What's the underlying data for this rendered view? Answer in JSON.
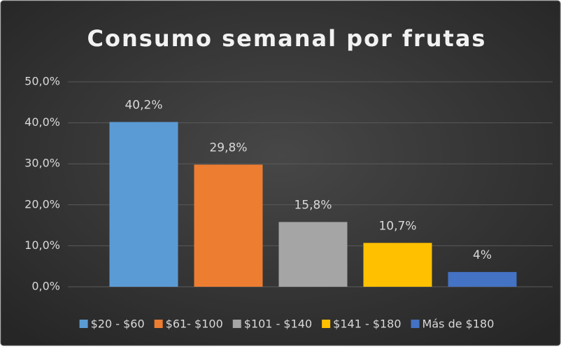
{
  "chart_data": {
    "type": "bar",
    "title": "Consumo semanal por frutas",
    "categories": [
      "$20 - $60",
      "$61- $100",
      "$101 - $140",
      "$141 - $180",
      "Más de $180"
    ],
    "values": [
      40.2,
      29.8,
      15.8,
      10.7,
      3.6
    ],
    "value_labels": [
      "40,2%",
      "29,8%",
      "15,8%",
      "10,7%",
      "4%"
    ],
    "colors": [
      "#5b9bd5",
      "#ed7d31",
      "#a5a5a5",
      "#ffc000",
      "#4472c4"
    ],
    "ylim": [
      0,
      50
    ],
    "yticks": [
      {
        "value": 0,
        "label": "0,0%"
      },
      {
        "value": 10,
        "label": "10,0%"
      },
      {
        "value": 20,
        "label": "20,0%"
      },
      {
        "value": 30,
        "label": "30,0%"
      },
      {
        "value": 40,
        "label": "40,0%"
      },
      {
        "value": 50,
        "label": "50,0%"
      }
    ],
    "grid": true,
    "legend": "bottom"
  }
}
